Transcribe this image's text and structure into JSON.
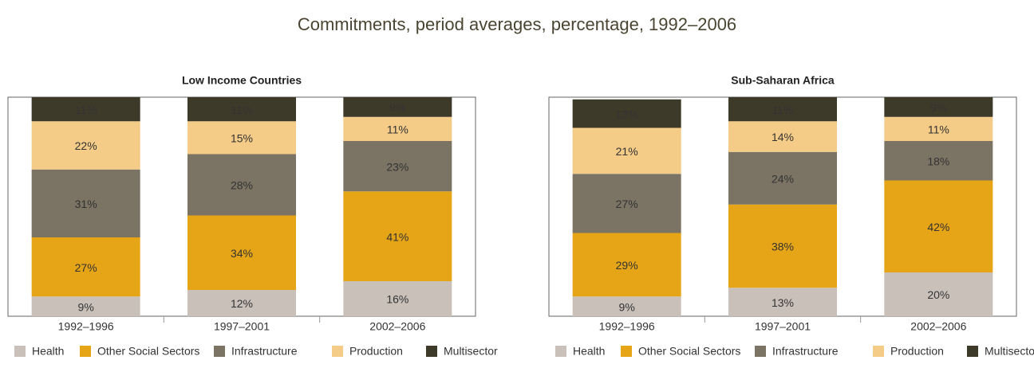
{
  "title": "Commitments, period averages, percentage, 1992–2006",
  "chart_data": [
    {
      "type": "stacked_bar",
      "title": "Low Income Countries",
      "categories": [
        "1992–1996",
        "1997–2001",
        "2002–2006"
      ],
      "ylim": [
        0,
        100
      ],
      "series": [
        {
          "name": "Health",
          "color": "#c9c1b9",
          "values": [
            9,
            12,
            16
          ],
          "value_labels": [
            "9%",
            "12%",
            "16%"
          ]
        },
        {
          "name": "Other Social Sectors",
          "color": "#e6a417",
          "values": [
            27,
            34,
            41
          ],
          "value_labels": [
            "27%",
            "34%",
            "41%"
          ]
        },
        {
          "name": "Infrastructure",
          "color": "#7b7363",
          "values": [
            31,
            28,
            23
          ],
          "value_labels": [
            "31%",
            "28%",
            "23%"
          ]
        },
        {
          "name": "Production",
          "color": "#f4cb87",
          "values": [
            22,
            15,
            11
          ],
          "value_labels": [
            "22%",
            "15%",
            "11%"
          ]
        },
        {
          "name": "Multisector",
          "color": "#3e3a2a",
          "values": [
            11,
            11,
            9
          ],
          "value_labels": [
            "11%",
            "11%",
            "9%"
          ]
        }
      ]
    },
    {
      "type": "stacked_bar",
      "title": "Sub-Saharan Africa",
      "categories": [
        "1992–1996",
        "1997–2001",
        "2002–2006"
      ],
      "ylim": [
        0,
        100
      ],
      "series": [
        {
          "name": "Health",
          "color": "#c9c1b9",
          "values": [
            9,
            13,
            20
          ],
          "value_labels": [
            "9%",
            "13%",
            "20%"
          ]
        },
        {
          "name": "Other Social Sectors",
          "color": "#e6a417",
          "values": [
            29,
            38,
            42
          ],
          "value_labels": [
            "29%",
            "38%",
            "42%"
          ]
        },
        {
          "name": "Infrastructure",
          "color": "#7b7363",
          "values": [
            27,
            24,
            18
          ],
          "value_labels": [
            "27%",
            "24%",
            "18%"
          ]
        },
        {
          "name": "Production",
          "color": "#f4cb87",
          "values": [
            21,
            14,
            11
          ],
          "value_labels": [
            "21%",
            "14%",
            "11%"
          ]
        },
        {
          "name": "Multisector",
          "color": "#3e3a2a",
          "values": [
            13,
            11,
            9
          ],
          "value_labels": [
            "13%",
            "11%",
            "9%"
          ]
        }
      ]
    }
  ]
}
